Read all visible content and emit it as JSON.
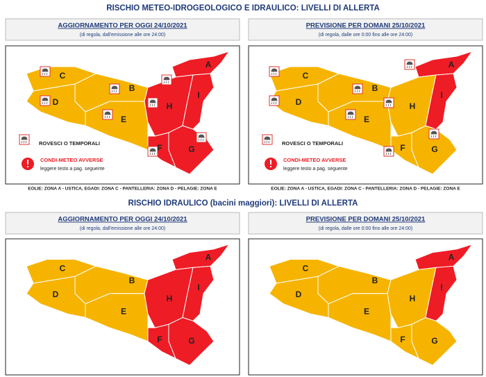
{
  "section_1": {
    "title": "RISCHIO METEO-IDROGEOLOGICO E IDRAULICO: LIVELLI DI ALLERTA",
    "panels": [
      {
        "header": "AGGIORNAMENTO PER OGGI 24/10/2021",
        "note": "(di regola, dall'emissione alle ore 24:00)",
        "zones": [
          {
            "label": "A",
            "color": "#ee1c25"
          },
          {
            "label": "B",
            "color": "#f6b400"
          },
          {
            "label": "C",
            "color": "#f6b400"
          },
          {
            "label": "D",
            "color": "#f6b400"
          },
          {
            "label": "E",
            "color": "#f6b400"
          },
          {
            "label": "F",
            "color": "#ee1c25"
          },
          {
            "label": "G",
            "color": "#ee1c25"
          },
          {
            "label": "H",
            "color": "#ee1c25"
          },
          {
            "label": "I",
            "color": "#ee1c25"
          }
        ],
        "legend": {
          "storm": "ROVESCI O TEMPORALI",
          "warning": "CONDI-METEO AVVERSE",
          "warning_note": "leggere testo a pag. seguente"
        },
        "footnote": "EOLIE: ZONA A - USTICA, EGADI: ZONA C - PANTELLERIA: ZONA D - PELAGIE: ZONA E"
      },
      {
        "header": "PREVISIONE PER DOMANI 25/10/2021",
        "note": "(di regola, dalle ore 0:00 fino alle ore 24:00)",
        "zones": [
          {
            "label": "A",
            "color": "#ee1c25"
          },
          {
            "label": "B",
            "color": "#f6b400"
          },
          {
            "label": "C",
            "color": "#f6b400"
          },
          {
            "label": "D",
            "color": "#f6b400"
          },
          {
            "label": "E",
            "color": "#f6b400"
          },
          {
            "label": "F",
            "color": "#f6b400"
          },
          {
            "label": "G",
            "color": "#f6b400"
          },
          {
            "label": "H",
            "color": "#f6b400"
          },
          {
            "label": "I",
            "color": "#ee1c25"
          }
        ],
        "legend": {
          "storm": "ROVESCI O TEMPORALI",
          "warning": "CONDI-METEO AVVERSE",
          "warning_note": "leggere testo a pag. seguente"
        },
        "footnote": "EOLIE: ZONA A - USTICA, EGADI: ZONA C - PANTELLERIA: ZONA D - PELAGIE: ZONA E"
      }
    ]
  },
  "section_2": {
    "title": "RISCHIO IDRAULICO (bacini maggiori): LIVELLI DI ALLERTA",
    "panels": [
      {
        "header": "AGGIORNAMENTO PER OGGI 24/10/2021",
        "note": "(di regola, dall'emissione alle ore 24:00)",
        "zones": [
          {
            "label": "A",
            "color": "#ee1c25"
          },
          {
            "label": "B",
            "color": "#f6b400"
          },
          {
            "label": "C",
            "color": "#f6b400"
          },
          {
            "label": "D",
            "color": "#f6b400"
          },
          {
            "label": "E",
            "color": "#f6b400"
          },
          {
            "label": "F",
            "color": "#ee1c25"
          },
          {
            "label": "G",
            "color": "#ee1c25"
          },
          {
            "label": "H",
            "color": "#ee1c25"
          },
          {
            "label": "I",
            "color": "#ee1c25"
          }
        ]
      },
      {
        "header": "PREVISIONE PER DOMANI 25/10/2021",
        "note": "(di regola, dalle ore 0:00 fino alle ore 24:00)",
        "zones": [
          {
            "label": "A",
            "color": "#ee1c25"
          },
          {
            "label": "B",
            "color": "#f6b400"
          },
          {
            "label": "C",
            "color": "#f6b400"
          },
          {
            "label": "D",
            "color": "#f6b400"
          },
          {
            "label": "E",
            "color": "#f6b400"
          },
          {
            "label": "F",
            "color": "#f6b400"
          },
          {
            "label": "G",
            "color": "#f6b400"
          },
          {
            "label": "H",
            "color": "#f6b400"
          },
          {
            "label": "I",
            "color": "#ee1c25"
          }
        ]
      }
    ]
  }
}
